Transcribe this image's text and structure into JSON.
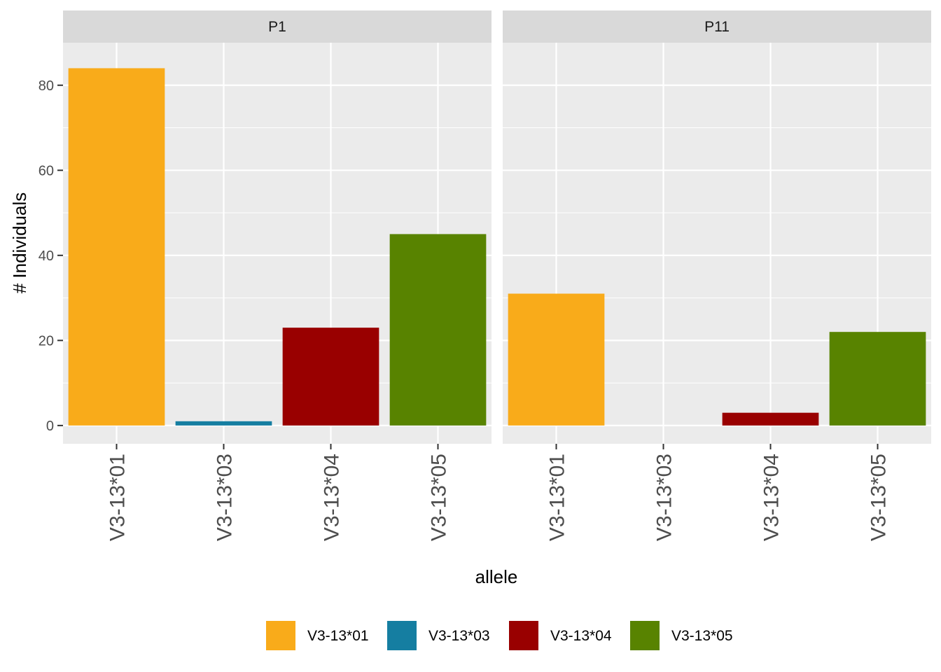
{
  "chart_data": {
    "type": "bar",
    "facet_by": "panel",
    "xlabel": "allele",
    "ylabel": "# Individuals",
    "ylim": [
      -4.3,
      90
    ],
    "y_ticks": [
      0,
      20,
      40,
      60,
      80
    ],
    "y_tick_labels": [
      "0",
      "20",
      "40",
      "60",
      "80"
    ],
    "grid": true,
    "legend_position": "bottom",
    "categories": [
      "V3-13*01",
      "V3-13*03",
      "V3-13*04",
      "V3-13*05"
    ],
    "colors": [
      "#F9AB1A",
      "#157EA1",
      "#990000",
      "#588300"
    ],
    "panels": [
      {
        "label": "P1",
        "values": [
          84,
          1,
          23,
          45
        ]
      },
      {
        "label": "P11",
        "values": [
          31,
          0,
          3,
          22
        ]
      }
    ],
    "legend": [
      "V3-13*01",
      "V3-13*03",
      "V3-13*04",
      "V3-13*05"
    ]
  }
}
